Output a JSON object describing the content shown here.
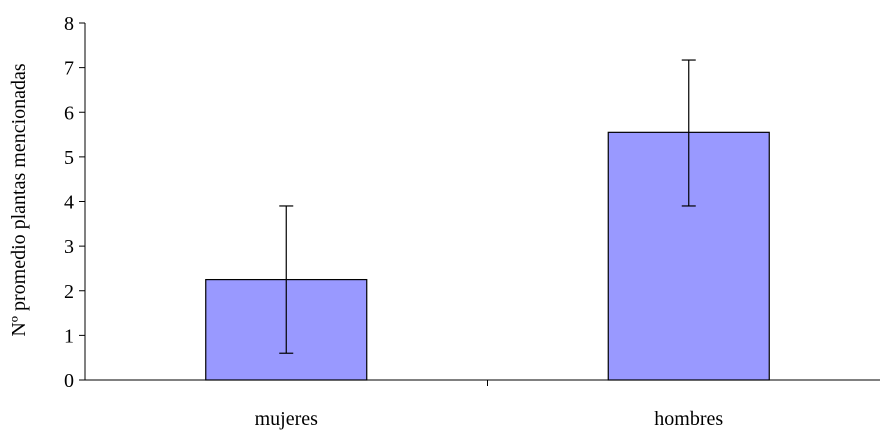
{
  "chart_data": {
    "type": "bar",
    "categories": [
      "mujeres",
      "hombres"
    ],
    "values": [
      2.25,
      5.55
    ],
    "error_low": [
      0.6,
      3.9
    ],
    "error_high": [
      3.9,
      7.17
    ],
    "title": "",
    "xlabel": "",
    "ylabel": "Nº promedio plantas mencionadas",
    "ylim": [
      0,
      8
    ],
    "yticks": [
      "0",
      "1",
      "2",
      "3",
      "4",
      "5",
      "6",
      "7",
      "8"
    ],
    "grid": false,
    "legend": "none",
    "bar_color": "#9999ff",
    "bar_edge_color": "#000000"
  }
}
